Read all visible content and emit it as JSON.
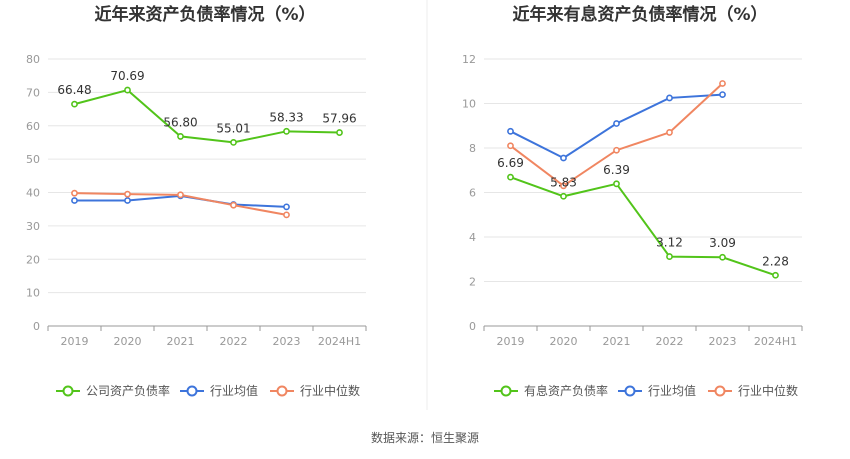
{
  "source_label": "数据来源：恒生聚源",
  "chart_data": [
    {
      "type": "line",
      "title": "近年来资产负债率情况（%）",
      "categories": [
        "2019",
        "2020",
        "2021",
        "2022",
        "2023",
        "2024H1"
      ],
      "ylim": [
        0,
        80
      ],
      "yticks": [
        0,
        10,
        20,
        30,
        40,
        50,
        60,
        70,
        80
      ],
      "grid": true,
      "legend_position": "bottom",
      "series": [
        {
          "name": "公司资产负债率",
          "color": "#52c41a",
          "values": [
            66.48,
            70.69,
            56.8,
            55.01,
            58.33,
            57.96
          ],
          "labels": [
            "66.48",
            "70.69",
            "56.80",
            "55.01",
            "58.33",
            "57.96"
          ]
        },
        {
          "name": "行业均值",
          "color": "#3d74db",
          "values": [
            37.6,
            37.6,
            39.0,
            36.4,
            35.7,
            null
          ]
        },
        {
          "name": "行业中位数",
          "color": "#f08661",
          "values": [
            39.8,
            39.5,
            39.3,
            36.2,
            33.3,
            null
          ]
        }
      ]
    },
    {
      "type": "line",
      "title": "近年来有息资产负债率情况（%）",
      "categories": [
        "2019",
        "2020",
        "2021",
        "2022",
        "2023",
        "2024H1"
      ],
      "ylim": [
        0,
        12
      ],
      "yticks": [
        0,
        2,
        4,
        6,
        8,
        10,
        12
      ],
      "grid": true,
      "legend_position": "bottom",
      "series": [
        {
          "name": "有息资产负债率",
          "color": "#52c41a",
          "values": [
            6.69,
            5.83,
            6.39,
            3.12,
            3.09,
            2.28
          ],
          "labels": [
            "6.69",
            "5.83",
            "6.39",
            "3.12",
            "3.09",
            "2.28"
          ]
        },
        {
          "name": "行业均值",
          "color": "#3d74db",
          "values": [
            8.75,
            7.55,
            9.1,
            10.25,
            10.4,
            null
          ]
        },
        {
          "name": "行业中位数",
          "color": "#f08661",
          "values": [
            8.1,
            6.3,
            7.9,
            8.7,
            10.9,
            null
          ]
        }
      ]
    }
  ]
}
